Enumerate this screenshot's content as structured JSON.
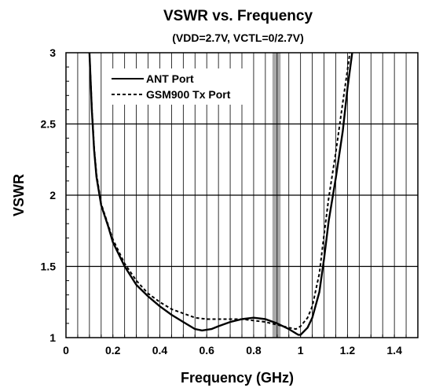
{
  "chart_data": {
    "type": "line",
    "title": "VSWR vs. Frequency",
    "subtitle": "(VDD=2.7V, VCTL=0/2.7V)",
    "xlabel": "Frequency (GHz)",
    "ylabel": "VSWR",
    "xlim": [
      0,
      1.5
    ],
    "ylim": [
      1,
      3
    ],
    "x_ticks": [
      "0",
      "0.2",
      "0.4",
      "0.6",
      "0.8",
      "1",
      "1.2",
      "1.4"
    ],
    "y_ticks": [
      "1",
      "1.5",
      "2",
      "2.5",
      "3"
    ],
    "grid": true,
    "legend_position": "top-left",
    "highlight_band": {
      "x_start": 0.88,
      "x_end": 0.915,
      "color": "#a9a9a9"
    },
    "series": [
      {
        "name": "ANT Port",
        "style": "solid",
        "points": [
          [
            0.1,
            3.0
          ],
          [
            0.11,
            2.6
          ],
          [
            0.12,
            2.32
          ],
          [
            0.13,
            2.13
          ],
          [
            0.15,
            1.93
          ],
          [
            0.18,
            1.78
          ],
          [
            0.2,
            1.67
          ],
          [
            0.25,
            1.5
          ],
          [
            0.3,
            1.37
          ],
          [
            0.35,
            1.29
          ],
          [
            0.4,
            1.22
          ],
          [
            0.45,
            1.16
          ],
          [
            0.5,
            1.11
          ],
          [
            0.55,
            1.06
          ],
          [
            0.58,
            1.05
          ],
          [
            0.62,
            1.06
          ],
          [
            0.65,
            1.08
          ],
          [
            0.7,
            1.11
          ],
          [
            0.75,
            1.13
          ],
          [
            0.8,
            1.14
          ],
          [
            0.85,
            1.13
          ],
          [
            0.9,
            1.1
          ],
          [
            0.95,
            1.06
          ],
          [
            0.99,
            1.02
          ],
          [
            1.0,
            1.02
          ],
          [
            1.03,
            1.07
          ],
          [
            1.05,
            1.14
          ],
          [
            1.08,
            1.32
          ],
          [
            1.1,
            1.55
          ],
          [
            1.12,
            1.82
          ],
          [
            1.15,
            2.12
          ],
          [
            1.18,
            2.45
          ],
          [
            1.2,
            2.75
          ],
          [
            1.22,
            3.0
          ]
        ]
      },
      {
        "name": "GSM900 Tx Port",
        "style": "dashed",
        "points": [
          [
            0.1,
            3.0
          ],
          [
            0.11,
            2.62
          ],
          [
            0.12,
            2.34
          ],
          [
            0.13,
            2.15
          ],
          [
            0.15,
            1.94
          ],
          [
            0.18,
            1.79
          ],
          [
            0.2,
            1.69
          ],
          [
            0.25,
            1.52
          ],
          [
            0.3,
            1.4
          ],
          [
            0.35,
            1.31
          ],
          [
            0.4,
            1.25
          ],
          [
            0.45,
            1.2
          ],
          [
            0.5,
            1.17
          ],
          [
            0.55,
            1.14
          ],
          [
            0.6,
            1.13
          ],
          [
            0.65,
            1.13
          ],
          [
            0.7,
            1.13
          ],
          [
            0.75,
            1.13
          ],
          [
            0.8,
            1.12
          ],
          [
            0.85,
            1.11
          ],
          [
            0.9,
            1.09
          ],
          [
            0.95,
            1.07
          ],
          [
            0.98,
            1.06
          ],
          [
            1.0,
            1.08
          ],
          [
            1.03,
            1.14
          ],
          [
            1.05,
            1.22
          ],
          [
            1.08,
            1.45
          ],
          [
            1.1,
            1.72
          ],
          [
            1.12,
            1.98
          ],
          [
            1.15,
            2.3
          ],
          [
            1.18,
            2.65
          ],
          [
            1.2,
            2.88
          ],
          [
            1.21,
            3.0
          ]
        ]
      }
    ]
  }
}
